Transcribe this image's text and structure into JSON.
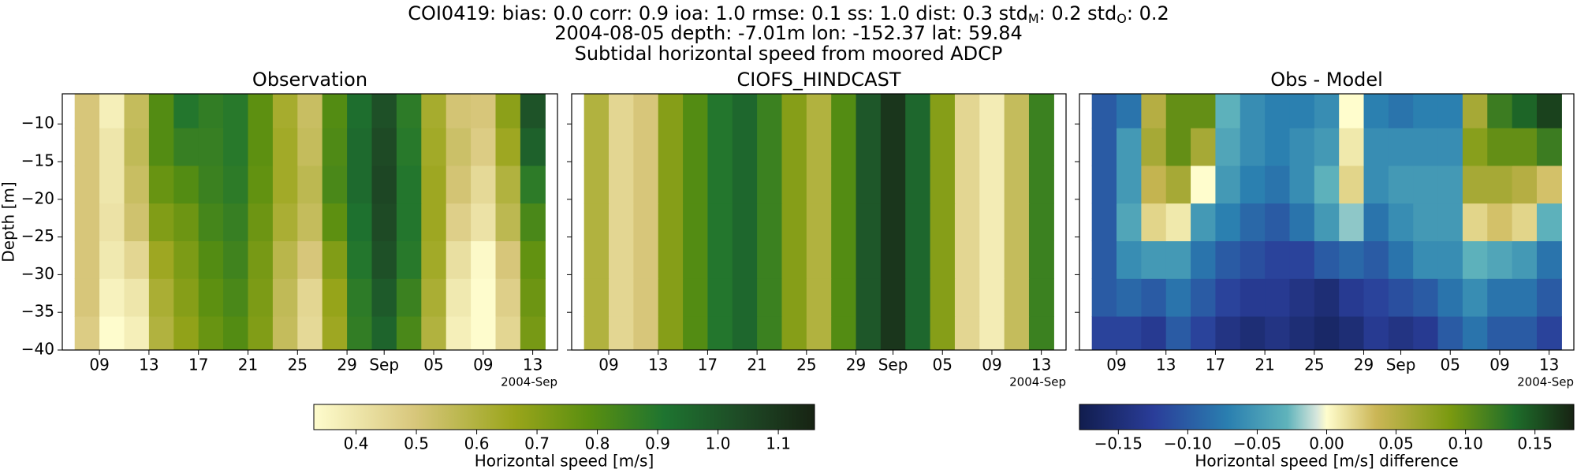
{
  "title_parts": [
    "COI0419: bias: 0.0  corr: 0.9  ioa: 1.0  rmse: 0.1  ss: 1.0  dist: 0.3  std",
    "M",
    ": 0.2  std",
    "O",
    ": 0.2"
  ],
  "subtitle_lines": [
    "2004-08-05 depth: -7.01m lon: -152.37 lat: 59.84",
    "Subtidal horizontal speed from moored ADCP"
  ],
  "colorbars": [
    {
      "label": "Horizontal speed [m/s]",
      "clim": [
        0.33,
        1.16
      ],
      "ticks": [
        0.4,
        0.5,
        0.6,
        0.7,
        0.8,
        0.9,
        {
          "value": 1,
          "label": "1.0"
        },
        1.1
      ],
      "colormap": [
        [
          0,
          "#fefccd"
        ],
        [
          0.2,
          "#d8c77c"
        ],
        [
          0.4,
          "#9aa51b"
        ],
        [
          0.55,
          "#5a8f10"
        ],
        [
          0.7,
          "#1e7430"
        ],
        [
          0.85,
          "#1e4b26"
        ],
        [
          1,
          "#172313"
        ]
      ]
    },
    {
      "label": "Horizontal speed [m/s] difference",
      "clim": [
        -0.178,
        0.178
      ],
      "ticks": [
        {
          "value": -0.15,
          "label": "−0.15"
        },
        {
          "value": -0.1,
          "label": "−0.10"
        },
        {
          "value": -0.05,
          "label": "−0.05"
        },
        {
          "value": 0,
          "label": "0.00"
        },
        {
          "value": 0.05,
          "label": "0.05"
        },
        {
          "value": 0.1,
          "label": "0.10"
        },
        {
          "value": 0.15,
          "label": "0.15"
        }
      ],
      "colormap": [
        [
          0,
          "#111d4e"
        ],
        [
          0.15,
          "#2a3d99"
        ],
        [
          0.3,
          "#2a7fb0"
        ],
        [
          0.42,
          "#5fb3bb"
        ],
        [
          0.48,
          "#d6e6dc"
        ],
        [
          0.5,
          "#fffdcd"
        ],
        [
          0.6,
          "#cbb656"
        ],
        [
          0.75,
          "#7a9a10"
        ],
        [
          0.88,
          "#1e6d2a"
        ],
        [
          1,
          "#172313"
        ]
      ]
    }
  ],
  "chart_data": [
    {
      "type": "heatmap",
      "title": "Observation",
      "ylabel": "Depth [m]",
      "colorbar": 0,
      "xaxis_offset_label": "2004-Sep",
      "xlim": [
        "2004-08-06",
        "2004-09-15"
      ],
      "xticks": [
        {
          "value": "2004-08-09",
          "label": "09"
        },
        {
          "value": "2004-08-13",
          "label": "13"
        },
        {
          "value": "2004-08-17",
          "label": "17"
        },
        {
          "value": "2004-08-21",
          "label": "21"
        },
        {
          "value": "2004-08-25",
          "label": "25"
        },
        {
          "value": "2004-08-29",
          "label": "29"
        },
        {
          "value": "2004-09-01",
          "label": "Sep"
        },
        {
          "value": "2004-09-05",
          "label": "05"
        },
        {
          "value": "2004-09-09",
          "label": "09"
        },
        {
          "value": "2004-09-13",
          "label": "13"
        }
      ],
      "ylim": [
        -40,
        -6
      ],
      "yticks": [
        {
          "value": -40,
          "label": "−40"
        },
        {
          "value": -35,
          "label": "−35"
        },
        {
          "value": -30,
          "label": "−30"
        },
        {
          "value": -25,
          "label": "−25"
        },
        {
          "value": -20,
          "label": "−20"
        },
        {
          "value": -15,
          "label": "−15"
        },
        {
          "value": -10,
          "label": "−10"
        }
      ],
      "x": [
        "2004-08-08",
        "2004-08-10",
        "2004-08-12",
        "2004-08-14",
        "2004-08-16",
        "2004-08-18",
        "2004-08-20",
        "2004-08-22",
        "2004-08-24",
        "2004-08-26",
        "2004-08-28",
        "2004-08-30",
        "2004-09-01",
        "2004-09-03",
        "2004-09-05",
        "2004-09-07",
        "2004-09-09",
        "2004-09-11",
        "2004-09-13"
      ],
      "y": [
        -38,
        -33,
        -28,
        -23,
        -18,
        -13,
        -8
      ],
      "values": [
        [
          0.48,
          0.33,
          0.37,
          0.6,
          0.68,
          0.76,
          0.8,
          0.71,
          0.55,
          0.44,
          0.65,
          0.87,
          0.96,
          0.82,
          0.6,
          0.37,
          0.28,
          0.45,
          0.73
        ],
        [
          0.5,
          0.36,
          0.4,
          0.62,
          0.7,
          0.78,
          0.82,
          0.72,
          0.56,
          0.45,
          0.67,
          0.88,
          0.99,
          0.85,
          0.62,
          0.39,
          0.3,
          0.47,
          0.75
        ],
        [
          0.5,
          0.39,
          0.45,
          0.65,
          0.72,
          0.8,
          0.84,
          0.73,
          0.58,
          0.5,
          0.71,
          0.9,
          1.02,
          0.89,
          0.64,
          0.42,
          0.34,
          0.5,
          0.77
        ],
        [
          0.5,
          0.41,
          0.52,
          0.71,
          0.75,
          0.83,
          0.86,
          0.75,
          0.62,
          0.55,
          0.78,
          0.92,
          1.04,
          0.9,
          0.65,
          0.47,
          0.41,
          0.57,
          0.82
        ],
        [
          0.5,
          0.4,
          0.54,
          0.76,
          0.8,
          0.85,
          0.88,
          0.77,
          0.64,
          0.57,
          0.82,
          0.94,
          1.05,
          0.9,
          0.65,
          0.51,
          0.44,
          0.6,
          0.88
        ],
        [
          0.5,
          0.4,
          0.56,
          0.8,
          0.86,
          0.86,
          0.89,
          0.78,
          0.64,
          0.55,
          0.81,
          0.94,
          1.04,
          0.89,
          0.64,
          0.53,
          0.48,
          0.65,
          0.97
        ],
        [
          0.5,
          0.37,
          0.55,
          0.8,
          0.9,
          0.87,
          0.89,
          0.78,
          0.63,
          0.54,
          0.8,
          0.93,
          1.02,
          0.88,
          0.63,
          0.51,
          0.5,
          0.69,
          1.01
        ]
      ]
    },
    {
      "type": "heatmap",
      "title": "CIOFS_HINDCAST",
      "colorbar": 0,
      "xaxis_offset_label": "2004-Sep",
      "xlim": [
        "2004-08-06",
        "2004-09-15"
      ],
      "xticks": [
        {
          "value": "2004-08-09",
          "label": "09"
        },
        {
          "value": "2004-08-13",
          "label": "13"
        },
        {
          "value": "2004-08-17",
          "label": "17"
        },
        {
          "value": "2004-08-21",
          "label": "21"
        },
        {
          "value": "2004-08-25",
          "label": "25"
        },
        {
          "value": "2004-08-29",
          "label": "29"
        },
        {
          "value": "2004-09-01",
          "label": "Sep"
        },
        {
          "value": "2004-09-05",
          "label": "05"
        },
        {
          "value": "2004-09-09",
          "label": "09"
        },
        {
          "value": "2004-09-13",
          "label": "13"
        }
      ],
      "ylim": [
        -40,
        -6
      ],
      "yticks": [
        -40,
        -35,
        -30,
        -25,
        -20,
        -15,
        -10
      ],
      "x": [
        "2004-08-08",
        "2004-08-10",
        "2004-08-12",
        "2004-08-14",
        "2004-08-16",
        "2004-08-18",
        "2004-08-20",
        "2004-08-22",
        "2004-08-24",
        "2004-08-26",
        "2004-08-28",
        "2004-08-30",
        "2004-09-01",
        "2004-09-03",
        "2004-09-05",
        "2004-09-07",
        "2004-09-09",
        "2004-09-11",
        "2004-09-13"
      ],
      "y": [
        -38,
        -33,
        -28,
        -23,
        -18,
        -13,
        -8
      ],
      "values": [
        [
          0.6,
          0.45,
          0.5,
          0.7,
          0.8,
          0.9,
          0.95,
          0.85,
          0.7,
          0.6,
          0.8,
          1.0,
          1.1,
          0.95,
          0.7,
          0.45,
          0.38,
          0.55,
          0.85
        ],
        [
          0.6,
          0.45,
          0.5,
          0.7,
          0.8,
          0.9,
          0.95,
          0.85,
          0.7,
          0.6,
          0.8,
          1.0,
          1.1,
          0.95,
          0.7,
          0.45,
          0.38,
          0.55,
          0.85
        ],
        [
          0.6,
          0.45,
          0.5,
          0.7,
          0.8,
          0.9,
          0.95,
          0.85,
          0.7,
          0.6,
          0.8,
          1.0,
          1.1,
          0.95,
          0.7,
          0.45,
          0.38,
          0.55,
          0.85
        ],
        [
          0.6,
          0.45,
          0.5,
          0.7,
          0.8,
          0.9,
          0.95,
          0.85,
          0.7,
          0.6,
          0.8,
          1.0,
          1.1,
          0.95,
          0.7,
          0.45,
          0.38,
          0.55,
          0.85
        ],
        [
          0.6,
          0.45,
          0.5,
          0.7,
          0.8,
          0.9,
          0.95,
          0.85,
          0.7,
          0.6,
          0.8,
          1.0,
          1.1,
          0.95,
          0.7,
          0.45,
          0.38,
          0.55,
          0.85
        ],
        [
          0.6,
          0.45,
          0.5,
          0.7,
          0.8,
          0.9,
          0.95,
          0.85,
          0.7,
          0.6,
          0.8,
          1.0,
          1.1,
          0.95,
          0.7,
          0.45,
          0.38,
          0.55,
          0.85
        ],
        [
          0.6,
          0.45,
          0.5,
          0.7,
          0.8,
          0.9,
          0.95,
          0.85,
          0.7,
          0.6,
          0.8,
          1.0,
          1.1,
          0.95,
          0.7,
          0.45,
          0.38,
          0.55,
          0.85
        ]
      ]
    },
    {
      "type": "heatmap",
      "title": "Obs - Model",
      "colorbar": 1,
      "xaxis_offset_label": "2004-Sep",
      "xlim": [
        "2004-08-06",
        "2004-09-15"
      ],
      "xticks": [
        {
          "value": "2004-08-09",
          "label": "09"
        },
        {
          "value": "2004-08-13",
          "label": "13"
        },
        {
          "value": "2004-08-17",
          "label": "17"
        },
        {
          "value": "2004-08-21",
          "label": "21"
        },
        {
          "value": "2004-08-25",
          "label": "25"
        },
        {
          "value": "2004-08-29",
          "label": "29"
        },
        {
          "value": "2004-09-01",
          "label": "Sep"
        },
        {
          "value": "2004-09-05",
          "label": "05"
        },
        {
          "value": "2004-09-09",
          "label": "09"
        },
        {
          "value": "2004-09-13",
          "label": "13"
        }
      ],
      "ylim": [
        -40,
        -6
      ],
      "yticks": [
        -40,
        -35,
        -30,
        -25,
        -20,
        -15,
        -10
      ],
      "x": [
        "2004-08-08",
        "2004-08-10",
        "2004-08-12",
        "2004-08-14",
        "2004-08-16",
        "2004-08-18",
        "2004-08-20",
        "2004-08-22",
        "2004-08-24",
        "2004-08-26",
        "2004-08-28",
        "2004-08-30",
        "2004-09-01",
        "2004-09-03",
        "2004-09-05",
        "2004-09-07",
        "2004-09-09",
        "2004-09-11",
        "2004-09-13"
      ],
      "y": [
        -38,
        -33,
        -28,
        -23,
        -18,
        -13,
        -8
      ],
      "values": [
        [
          -0.12,
          -0.12,
          -0.13,
          -0.1,
          -0.12,
          -0.14,
          -0.15,
          -0.14,
          -0.15,
          -0.16,
          -0.15,
          -0.13,
          -0.14,
          -0.13,
          -0.1,
          -0.08,
          -0.1,
          -0.1,
          -0.12
        ],
        [
          -0.1,
          -0.09,
          -0.1,
          -0.08,
          -0.1,
          -0.12,
          -0.13,
          -0.13,
          -0.14,
          -0.15,
          -0.13,
          -0.12,
          -0.11,
          -0.1,
          -0.08,
          -0.06,
          -0.08,
          -0.08,
          -0.1
        ],
        [
          -0.1,
          -0.06,
          -0.05,
          -0.05,
          -0.08,
          -0.1,
          -0.11,
          -0.12,
          -0.12,
          -0.1,
          -0.09,
          -0.1,
          -0.08,
          -0.06,
          -0.06,
          -0.03,
          -0.04,
          -0.05,
          -0.08
        ],
        [
          -0.1,
          -0.04,
          0.02,
          0.01,
          -0.05,
          -0.07,
          -0.09,
          -0.1,
          -0.08,
          -0.05,
          -0.02,
          -0.08,
          -0.06,
          -0.05,
          -0.05,
          0.02,
          0.03,
          0.02,
          -0.03
        ],
        [
          -0.1,
          -0.05,
          0.04,
          0.06,
          0.0,
          -0.05,
          -0.07,
          -0.08,
          -0.06,
          -0.03,
          0.02,
          -0.06,
          -0.05,
          -0.05,
          -0.05,
          0.06,
          0.06,
          0.05,
          0.03
        ],
        [
          -0.1,
          -0.05,
          0.06,
          0.1,
          0.06,
          -0.04,
          -0.06,
          -0.07,
          -0.06,
          -0.05,
          0.01,
          -0.06,
          -0.06,
          -0.06,
          -0.06,
          0.08,
          0.1,
          0.1,
          0.12
        ],
        [
          -0.1,
          -0.08,
          0.05,
          0.1,
          0.1,
          -0.03,
          -0.06,
          -0.07,
          -0.07,
          -0.06,
          0.0,
          -0.07,
          -0.08,
          -0.07,
          -0.07,
          0.06,
          0.12,
          0.14,
          0.16
        ]
      ]
    }
  ]
}
